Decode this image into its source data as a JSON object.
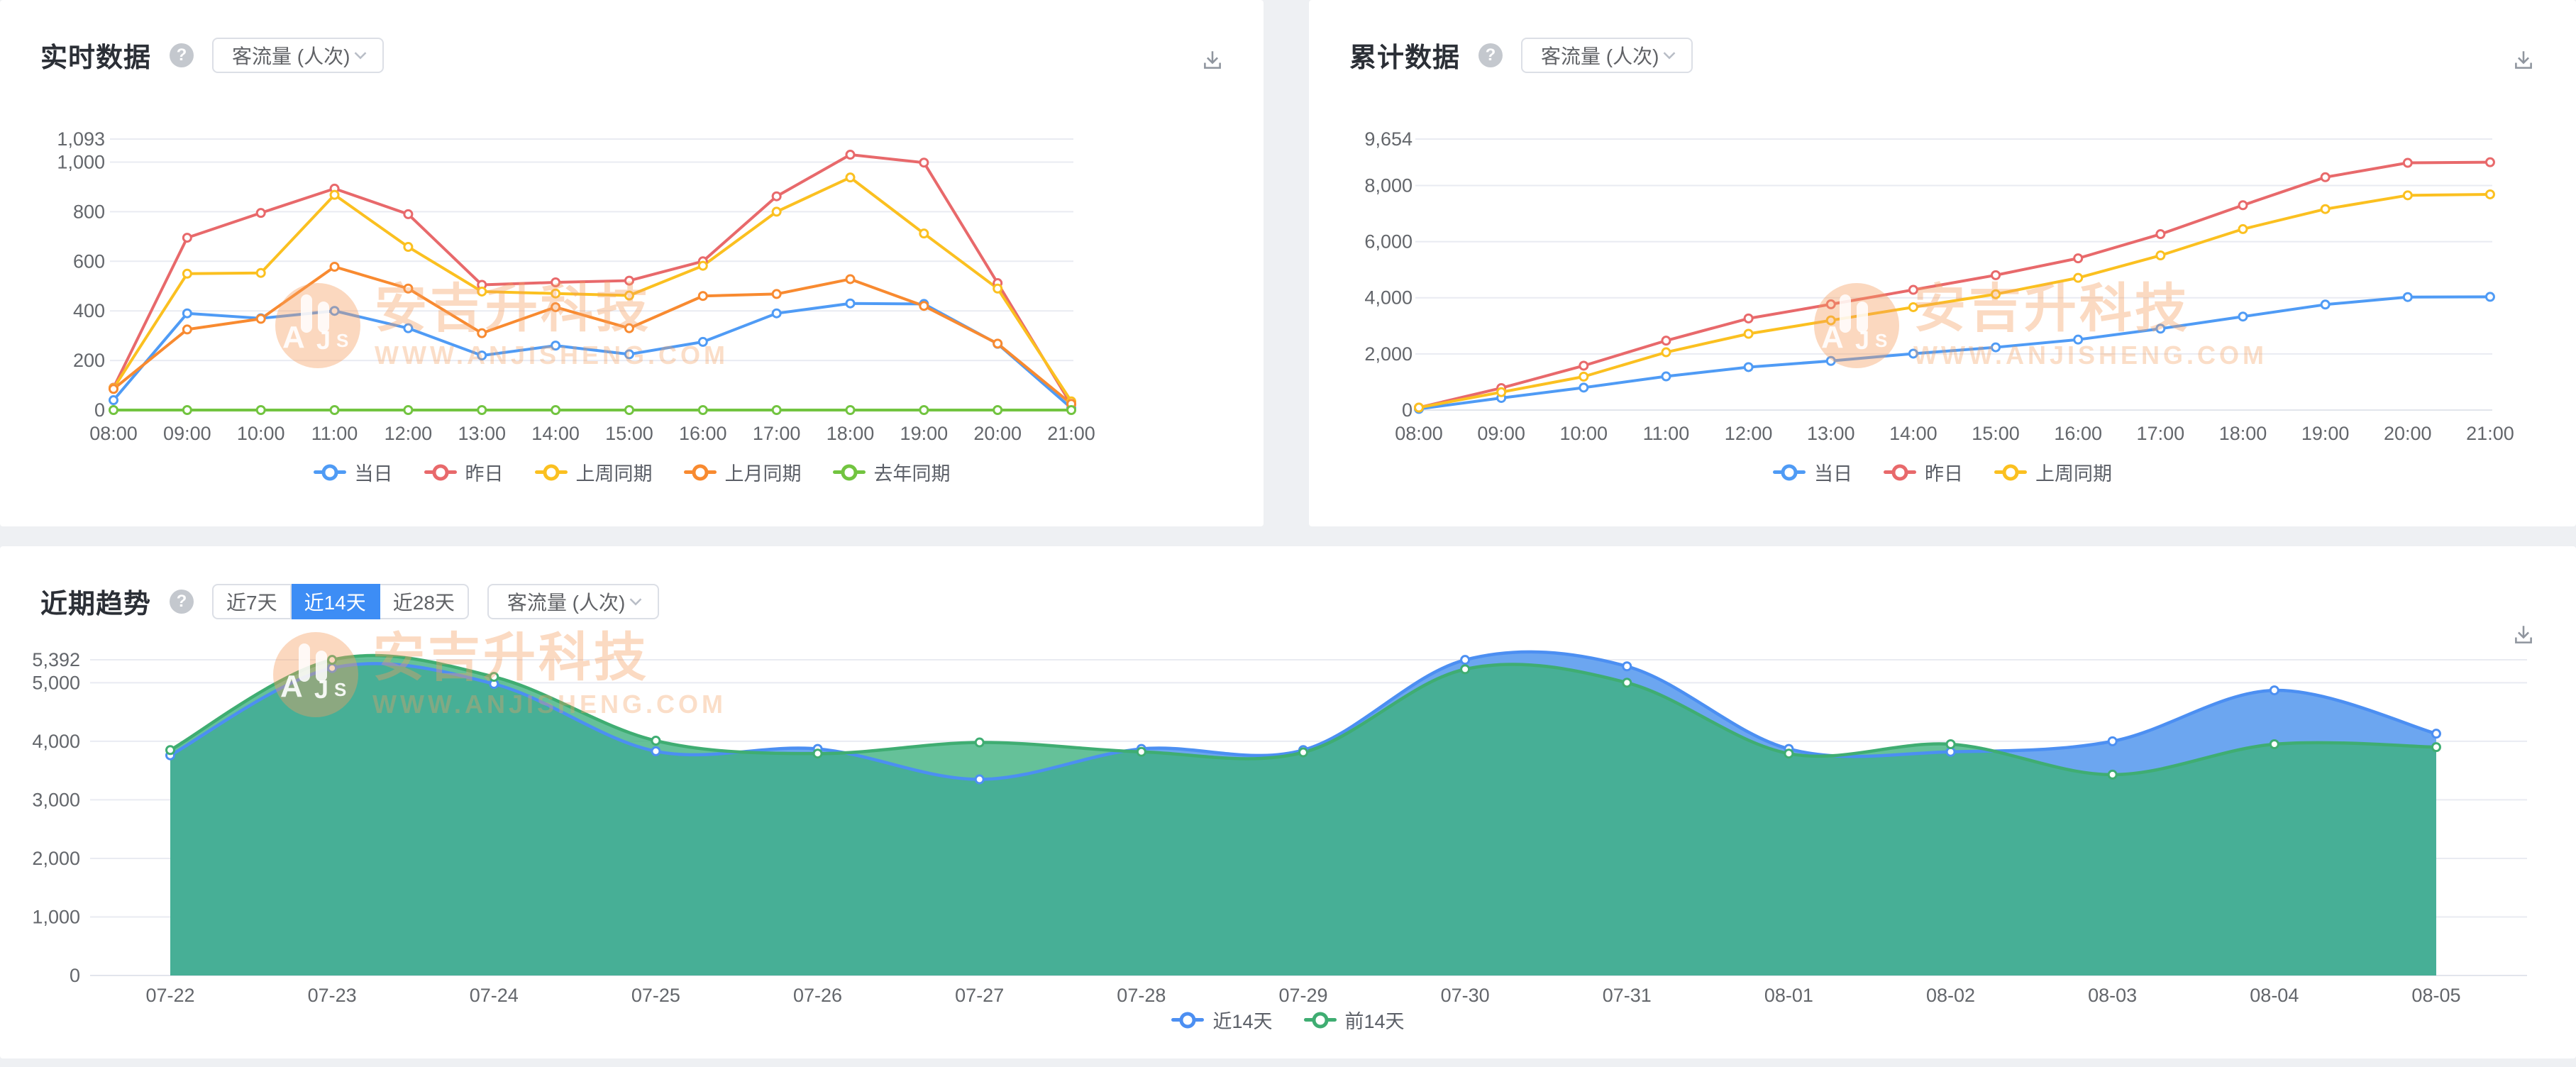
{
  "watermark": {
    "brand": "安吉升科技",
    "url": "WWW.ANJISHENG.COM",
    "logo_letters": "AJS"
  },
  "cards": [
    {
      "title": "实时数据",
      "metric": "客流量 (人次)"
    },
    {
      "title": "累计数据",
      "metric": "客流量 (人次)"
    },
    {
      "title": "近期趋势",
      "metric": "客流量 (人次)",
      "ranges": [
        {
          "label": "近7天",
          "active": false
        },
        {
          "label": "近14天",
          "active": true
        },
        {
          "label": "近28天",
          "active": false
        }
      ]
    }
  ],
  "chart_data": [
    {
      "type": "line",
      "title": "实时数据",
      "xlabel": "",
      "ylabel": "客流量 (人次)",
      "smooth": false,
      "area": false,
      "grid": true,
      "legend_position": "bottom",
      "ylim": [
        0,
        1093
      ],
      "y_ticks": [
        {
          "v": 0,
          "label": "0"
        },
        {
          "v": 200,
          "label": "200"
        },
        {
          "v": 400,
          "label": "400"
        },
        {
          "v": 600,
          "label": "600"
        },
        {
          "v": 800,
          "label": "800"
        },
        {
          "v": 1000,
          "label": "1,000"
        },
        {
          "v": 1093,
          "label": "1,093"
        }
      ],
      "categories": [
        "08:00",
        "09:00",
        "10:00",
        "11:00",
        "12:00",
        "13:00",
        "14:00",
        "15:00",
        "16:00",
        "17:00",
        "18:00",
        "19:00",
        "20:00",
        "21:00"
      ],
      "series": [
        {
          "name": "当日",
          "color": "#4f9bf5",
          "values": [
            40,
            390,
            370,
            400,
            330,
            220,
            260,
            225,
            275,
            390,
            430,
            428,
            267,
            8
          ]
        },
        {
          "name": "昨日",
          "color": "#e8696b",
          "values": [
            90,
            695,
            795,
            893,
            790,
            505,
            515,
            522,
            600,
            862,
            1030,
            998,
            512,
            22
          ]
        },
        {
          "name": "上周同期",
          "color": "#fbc020",
          "values": [
            88,
            550,
            553,
            868,
            658,
            478,
            470,
            462,
            582,
            800,
            938,
            712,
            490,
            35
          ]
        },
        {
          "name": "上月同期",
          "color": "#f88a30",
          "values": [
            85,
            325,
            368,
            578,
            490,
            310,
            415,
            330,
            460,
            468,
            528,
            420,
            268,
            25
          ]
        },
        {
          "name": "去年同期",
          "color": "#72c440",
          "values": [
            0,
            0,
            0,
            0,
            0,
            0,
            0,
            0,
            0,
            0,
            0,
            0,
            0,
            0
          ]
        }
      ]
    },
    {
      "type": "line",
      "title": "累计数据",
      "xlabel": "",
      "ylabel": "客流量 (人次)",
      "smooth": false,
      "area": false,
      "grid": true,
      "legend_position": "bottom",
      "ylim": [
        0,
        9654
      ],
      "y_ticks": [
        {
          "v": 0,
          "label": "0"
        },
        {
          "v": 2000,
          "label": "2,000"
        },
        {
          "v": 4000,
          "label": "4,000"
        },
        {
          "v": 6000,
          "label": "6,000"
        },
        {
          "v": 8000,
          "label": "8,000"
        },
        {
          "v": 9654,
          "label": "9,654"
        }
      ],
      "categories": [
        "08:00",
        "09:00",
        "10:00",
        "11:00",
        "12:00",
        "13:00",
        "14:00",
        "15:00",
        "16:00",
        "17:00",
        "18:00",
        "19:00",
        "20:00",
        "21:00"
      ],
      "series": [
        {
          "name": "当日",
          "color": "#4f9bf5",
          "values": [
            40,
            430,
            800,
            1200,
            1530,
            1750,
            2010,
            2235,
            2510,
            2900,
            3330,
            3758,
            4025,
            4033
          ]
        },
        {
          "name": "昨日",
          "color": "#e8696b",
          "values": [
            90,
            785,
            1580,
            2473,
            3263,
            3768,
            4283,
            4805,
            5405,
            6267,
            7297,
            8295,
            8807,
            8829
          ]
        },
        {
          "name": "上周同期",
          "color": "#fbc020",
          "values": [
            88,
            638,
            1191,
            2059,
            2717,
            3195,
            3665,
            4127,
            4709,
            5509,
            6447,
            7159,
            7649,
            7684
          ]
        }
      ]
    },
    {
      "type": "area",
      "title": "近期趋势",
      "xlabel": "",
      "ylabel": "客流量 (人次)",
      "smooth": true,
      "area": true,
      "grid": true,
      "legend_position": "bottom",
      "ylim": [
        0,
        5392
      ],
      "y_ticks": [
        {
          "v": 0,
          "label": "0"
        },
        {
          "v": 1000,
          "label": "1,000"
        },
        {
          "v": 2000,
          "label": "2,000"
        },
        {
          "v": 3000,
          "label": "3,000"
        },
        {
          "v": 4000,
          "label": "4,000"
        },
        {
          "v": 5000,
          "label": "5,000"
        },
        {
          "v": 5392,
          "label": "5,392"
        }
      ],
      "categories": [
        "07-22",
        "07-23",
        "07-24",
        "07-25",
        "07-26",
        "07-27",
        "07-28",
        "07-29",
        "07-30",
        "07-31",
        "08-01",
        "08-02",
        "08-03",
        "08-04",
        "08-05"
      ],
      "series": [
        {
          "name": "近14天",
          "color": "#4c8ff2",
          "fill": "#6ca6f0",
          "values": [
            3760,
            5250,
            4980,
            3830,
            3870,
            3350,
            3870,
            3850,
            5390,
            5280,
            3870,
            3820,
            4000,
            4870,
            4130
          ]
        },
        {
          "name": "前14天",
          "color": "#3fad72",
          "fill": "rgba(62,178,128,0.8)",
          "values": [
            3850,
            5390,
            5100,
            4010,
            3790,
            3980,
            3820,
            3810,
            5230,
            5000,
            3790,
            3950,
            3430,
            3950,
            3900
          ]
        }
      ]
    }
  ]
}
